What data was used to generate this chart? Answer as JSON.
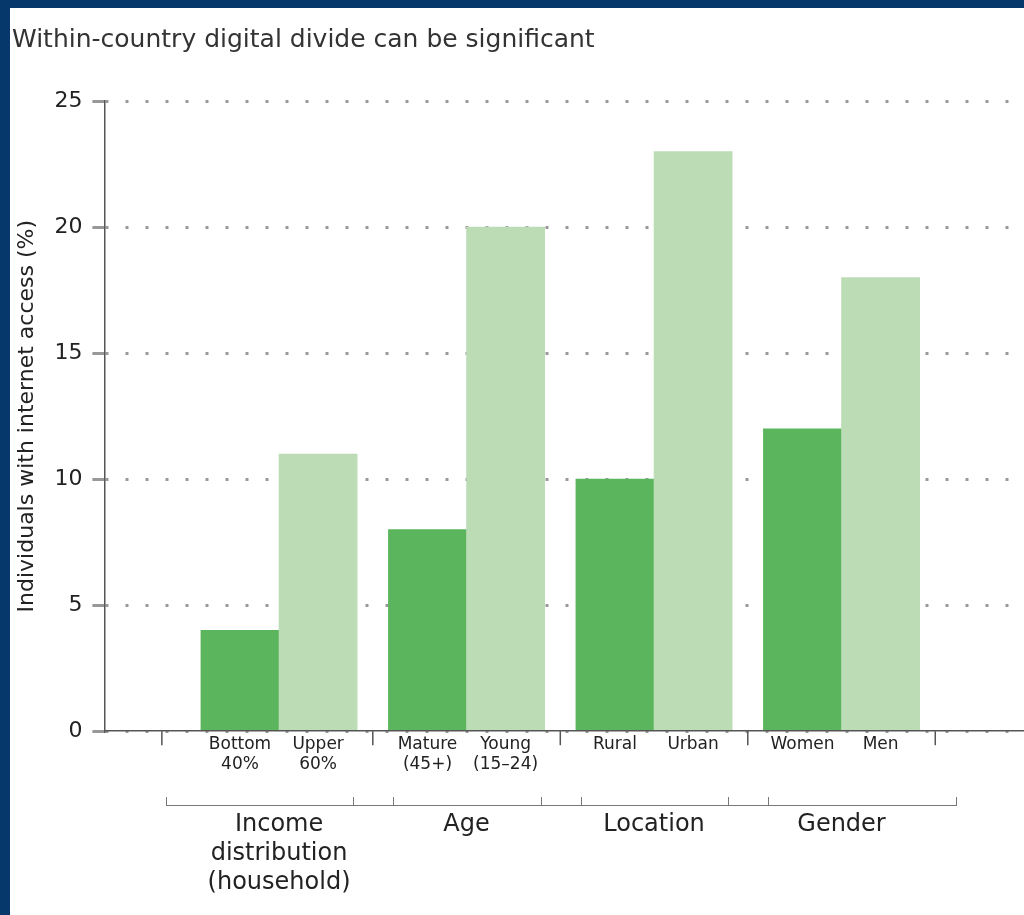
{
  "chart_data": {
    "type": "bar",
    "title": "Within-country digital divide can be significant",
    "ylabel": "Individuals with internet access (%)",
    "categories": [
      "Bottom\n40%",
      "Upper\n60%",
      "Mature\n(45+)",
      "Young\n(15–24)",
      "Rural",
      "Urban",
      "Women",
      "Men"
    ],
    "values": [
      4,
      11,
      8,
      20,
      10,
      23,
      12,
      18
    ],
    "colors": [
      "#5ab55c",
      "#bcdcb6",
      "#5ab55c",
      "#bcdcb6",
      "#5ab55c",
      "#bcdcb6",
      "#5ab55c",
      "#bcdcb6"
    ],
    "ylim": [
      0,
      25
    ],
    "yticks": [
      0,
      5,
      10,
      15,
      20,
      25
    ],
    "grid": "y",
    "legend": false,
    "annotations": [
      "Income\ndistribution\n(household)",
      "Age",
      "Location",
      "Gender"
    ]
  }
}
